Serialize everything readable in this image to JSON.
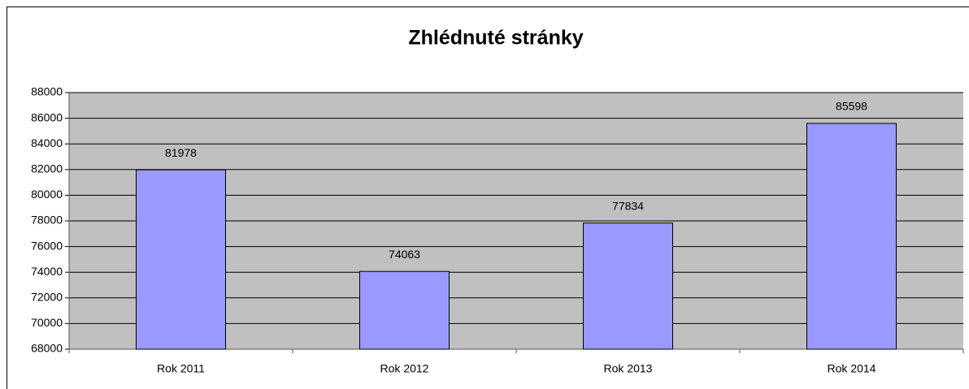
{
  "chart_data": {
    "type": "bar",
    "title": "Zhlédnuté stránky",
    "categories": [
      "Rok 2011",
      "Rok 2012",
      "Rok 2013",
      "Rok 2014"
    ],
    "values": [
      81978,
      74063,
      77834,
      85598
    ],
    "color": "#9999ff",
    "ylim": [
      68000,
      88000
    ],
    "yticks": [
      68000,
      70000,
      72000,
      74000,
      76000,
      78000,
      80000,
      82000,
      84000,
      86000,
      88000
    ],
    "grid": true
  }
}
